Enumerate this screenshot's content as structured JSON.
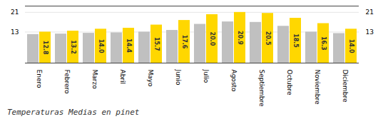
{
  "chart_data": {
    "type": "bar",
    "title": "Temperaturas Medias en pinet",
    "categories": [
      "Enero",
      "Febrero",
      "Marzo",
      "Abril",
      "Mayo",
      "Junio",
      "Julio",
      "Agosto",
      "Septiembre",
      "Octubre",
      "Noviembre",
      "Diciembre"
    ],
    "series": [
      {
        "color": "#C0C0C0",
        "values": [
          11.8,
          12.0,
          12.3,
          12.5,
          12.8,
          13.5,
          16.0,
          17.0,
          16.8,
          15.2,
          12.8,
          12.2
        ]
      },
      {
        "color": "#FFD700",
        "values": [
          12.8,
          13.2,
          14.0,
          14.4,
          15.7,
          17.6,
          20.0,
          20.9,
          20.5,
          18.5,
          16.3,
          14.0
        ],
        "data_labels": true,
        "value_labels": [
          "12.8",
          "13.2",
          "14.0",
          "14.4",
          "15.7",
          "17.6",
          "20.0",
          "20.9",
          "20.5",
          "18.5",
          "16.3",
          "14.0"
        ]
      }
    ],
    "ylim": [
      0,
      23.5
    ],
    "yticks": [
      12.8,
      20.9
    ],
    "grid": true
  }
}
